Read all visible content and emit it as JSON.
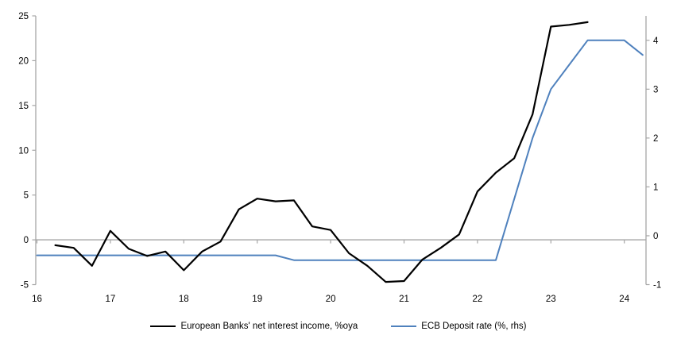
{
  "chart_data": {
    "type": "line",
    "title": "",
    "x_axis": {
      "ticks": [
        16,
        17,
        18,
        19,
        20,
        21,
        22,
        23,
        24
      ],
      "min": 16,
      "max": 24.3
    },
    "left_axis": {
      "ticks": [
        25,
        20,
        15,
        10,
        5,
        0,
        -5
      ],
      "min": -5,
      "max": 25
    },
    "right_axis": {
      "ticks": [
        4,
        3,
        2,
        1,
        0,
        -1
      ],
      "min": -1,
      "max": 4.5
    },
    "grid": false,
    "zero_line": true,
    "legend_position": "bottom",
    "series": [
      {
        "name": "ECB Deposit rate (%, rhs)",
        "axis": "right",
        "color": "#4f81bd",
        "points": [
          [
            16.0,
            -0.4
          ],
          [
            16.25,
            -0.4
          ],
          [
            16.5,
            -0.4
          ],
          [
            16.75,
            -0.4
          ],
          [
            17.0,
            -0.4
          ],
          [
            17.25,
            -0.4
          ],
          [
            17.5,
            -0.4
          ],
          [
            17.75,
            -0.4
          ],
          [
            18.0,
            -0.4
          ],
          [
            18.25,
            -0.4
          ],
          [
            18.5,
            -0.4
          ],
          [
            18.75,
            -0.4
          ],
          [
            19.0,
            -0.4
          ],
          [
            19.25,
            -0.4
          ],
          [
            19.5,
            -0.5
          ],
          [
            19.75,
            -0.5
          ],
          [
            20.0,
            -0.5
          ],
          [
            20.25,
            -0.5
          ],
          [
            20.5,
            -0.5
          ],
          [
            20.75,
            -0.5
          ],
          [
            21.0,
            -0.5
          ],
          [
            21.25,
            -0.5
          ],
          [
            21.5,
            -0.5
          ],
          [
            21.75,
            -0.5
          ],
          [
            22.0,
            -0.5
          ],
          [
            22.25,
            -0.5
          ],
          [
            22.5,
            0.75
          ],
          [
            22.75,
            2.0
          ],
          [
            23.0,
            3.0
          ],
          [
            23.25,
            3.5
          ],
          [
            23.5,
            4.0
          ],
          [
            23.75,
            4.0
          ],
          [
            24.0,
            4.0
          ],
          [
            24.25,
            3.7
          ]
        ]
      },
      {
        "name": "European Banks' net interest income, %oya",
        "axis": "left",
        "color": "#000000",
        "points": [
          [
            16.25,
            -0.6
          ],
          [
            16.5,
            -0.9
          ],
          [
            16.75,
            -2.9
          ],
          [
            17.0,
            1.0
          ],
          [
            17.25,
            -1.0
          ],
          [
            17.5,
            -1.8
          ],
          [
            17.75,
            -1.3
          ],
          [
            18.0,
            -3.4
          ],
          [
            18.25,
            -1.3
          ],
          [
            18.5,
            -0.2
          ],
          [
            18.75,
            3.4
          ],
          [
            19.0,
            4.6
          ],
          [
            19.25,
            4.3
          ],
          [
            19.5,
            4.4
          ],
          [
            19.75,
            1.5
          ],
          [
            20.0,
            1.1
          ],
          [
            20.25,
            -1.5
          ],
          [
            20.5,
            -2.9
          ],
          [
            20.75,
            -4.7
          ],
          [
            21.0,
            -4.6
          ],
          [
            21.25,
            -2.2
          ],
          [
            21.5,
            -0.9
          ],
          [
            21.75,
            0.6
          ],
          [
            22.0,
            5.4
          ],
          [
            22.25,
            7.5
          ],
          [
            22.5,
            9.1
          ],
          [
            22.75,
            14.0
          ],
          [
            23.0,
            23.8
          ],
          [
            23.25,
            24.0
          ],
          [
            23.5,
            24.3
          ]
        ]
      }
    ]
  },
  "legend": {
    "items": [
      {
        "label": "European Banks' net interest income, %oya",
        "color": "#000000"
      },
      {
        "label": "ECB Deposit rate (%, rhs)",
        "color": "#4f81bd"
      }
    ]
  },
  "colors": {
    "axis_line": "#a6a6a6",
    "zero_line": "#a6a6a6",
    "tick_text": "#000000",
    "background": "#ffffff"
  }
}
